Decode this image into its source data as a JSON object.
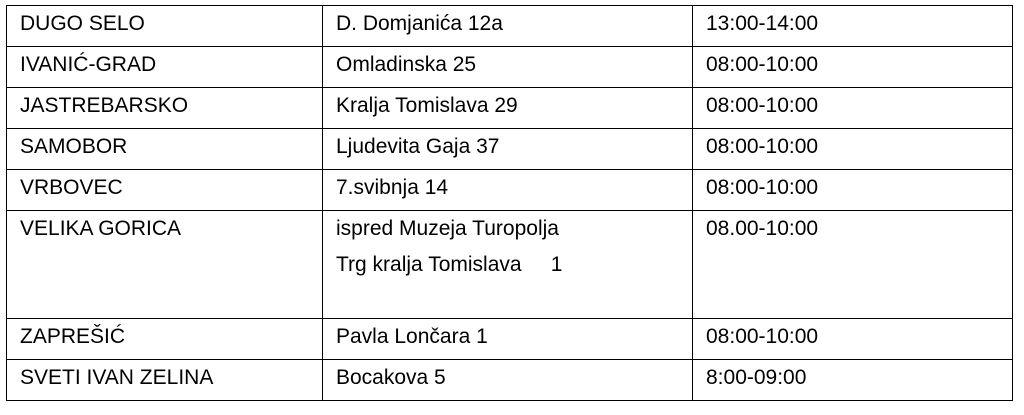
{
  "table": {
    "rows": [
      [
        "DUGO SELO",
        "D. Domjanića 12a",
        "13:00-14:00"
      ],
      [
        "IVANIĆ-GRAD",
        "Omladinska 25",
        "08:00-10:00"
      ],
      [
        "JASTREBARSKO",
        "Kralja Tomislava 29",
        "08:00-10:00"
      ],
      [
        "SAMOBOR",
        "Ljudevita Gaja 37",
        "08:00-10:00"
      ],
      [
        "VRBOVEC",
        "7.svibnja 14",
        "08:00-10:00"
      ],
      [
        "VELIKA GORICA",
        [
          "ispred Muzeja Turopolja",
          "Trg kralja Tomislava     1"
        ],
        "08.00-10:00"
      ],
      [
        "ZAPREŠIĆ",
        "Pavla Lončara 1",
        "08:00-10:00"
      ],
      [
        "SVETI IVAN ZELINA",
        "Bocakova 5",
        "8:00-09:00"
      ]
    ]
  }
}
